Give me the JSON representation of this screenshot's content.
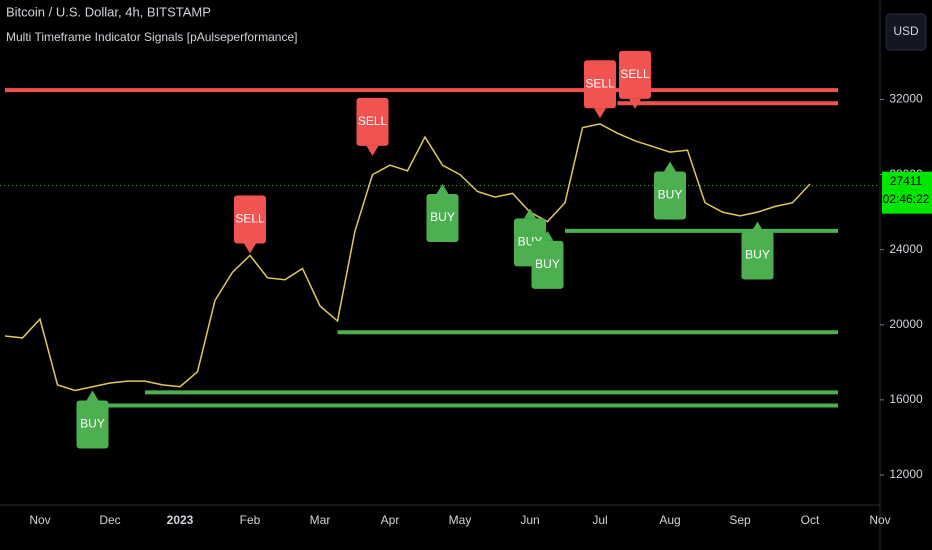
{
  "chart_data": {
    "type": "line",
    "title": "Bitcoin / U.S. Dollar, 4h, BITSTAMP",
    "subtitle": "Multi Timeframe Indicator Signals [pAulseperformance]",
    "currency": "USD",
    "categories": [
      null,
      null,
      "Nov",
      null,
      null,
      null,
      "Dec",
      null,
      null,
      null,
      "2023",
      null,
      null,
      null,
      "Feb",
      null,
      null,
      null,
      "Mar",
      null,
      null,
      null,
      "Apr",
      null,
      null,
      null,
      "May",
      null,
      null,
      null,
      "Jun",
      null,
      null,
      null,
      "Jul",
      null,
      null,
      null,
      "Aug",
      null,
      null,
      null,
      "Sep",
      null,
      null,
      null,
      "Oct",
      null,
      null,
      null,
      "Nov"
    ],
    "series": [
      {
        "color": "#e0c85a",
        "values": [
          19400,
          19300,
          20300,
          16800,
          16500,
          16700,
          16900,
          17000,
          17000,
          16800,
          16700,
          17500,
          21300,
          22800,
          23700,
          22500,
          22400,
          23000,
          21000,
          20200,
          25000,
          28000,
          28500,
          28200,
          30000,
          28500,
          28000,
          27100,
          26800,
          27000,
          26000,
          25500,
          26500,
          30500,
          30700,
          30200,
          29800,
          29500,
          29200,
          29300,
          26500,
          26000,
          25800,
          26000,
          26300,
          26500,
          27500,
          null,
          null,
          null,
          null
        ]
      }
    ],
    "ylim": [
      10400,
      37300
    ],
    "yticks": [
      12000,
      16000,
      20000,
      24000,
      28000,
      32000
    ],
    "current_price": 27411,
    "timer": "02:46:22",
    "levels": [
      {
        "value": 32500,
        "color": "#f05350",
        "start": 0
      },
      {
        "value": 31800,
        "color": "#f05350",
        "start": 35
      },
      {
        "value": 25000,
        "color": "#4caf50",
        "start": 32
      },
      {
        "value": 19600,
        "color": "#4caf50",
        "start": 19
      },
      {
        "value": 16400,
        "color": "#4caf50",
        "start": 8
      },
      {
        "value": 15700,
        "color": "#4caf50",
        "start": 5
      }
    ],
    "signals": [
      {
        "label": "BUY",
        "index": 5,
        "price": 16500,
        "color": "#4caf50"
      },
      {
        "label": "SELL",
        "index": 14,
        "price": 23800,
        "color": "#f05350"
      },
      {
        "label": "SELL",
        "index": 21,
        "price": 29000,
        "color": "#f05350"
      },
      {
        "label": "BUY",
        "index": 25,
        "price": 27500,
        "color": "#4caf50"
      },
      {
        "label": "BUY",
        "index": 30,
        "price": 26200,
        "color": "#4caf50"
      },
      {
        "label": "BUY",
        "index": 31,
        "price": 25000,
        "color": "#4caf50"
      },
      {
        "label": "SELL",
        "index": 34,
        "price": 31000,
        "color": "#f05350"
      },
      {
        "label": "SELL",
        "index": 36,
        "price": 31500,
        "color": "#f05350"
      },
      {
        "label": "BUY",
        "index": 38,
        "price": 28700,
        "color": "#4caf50"
      },
      {
        "label": "BUY",
        "index": 43,
        "price": 25500,
        "color": "#4caf50"
      }
    ]
  }
}
